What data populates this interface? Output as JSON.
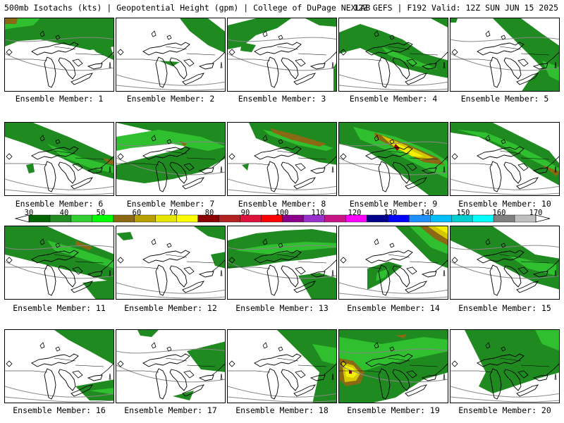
{
  "header": {
    "left": "500mb Isotachs (kts) | Geopotential Height (gpm) | College of DuPage NEXLAB",
    "right": "12Z GEFS | F192 Valid: 12Z SUN JUN 15 2025"
  },
  "colorbar": {
    "labels": [
      "30",
      "40",
      "50",
      "60",
      "70",
      "80",
      "90",
      "100",
      "110",
      "120",
      "130",
      "140",
      "150",
      "160",
      "170"
    ],
    "colors": [
      "#006400",
      "#228b22",
      "#32cd32",
      "#00ff00",
      "#8b6914",
      "#b8a000",
      "#e6e600",
      "#ffff00",
      "#8b0000",
      "#b22222",
      "#dc143c",
      "#ff0000",
      "#8b008b",
      "#9932cc",
      "#c71585",
      "#ff00ff",
      "#00008b",
      "#0000ff",
      "#1e90ff",
      "#00bfff",
      "#00ced1",
      "#00ffff",
      "#808080",
      "#c0c0c0"
    ]
  },
  "panels": [
    {
      "label": "Ensemble Member: 1"
    },
    {
      "label": "Ensemble Member: 2"
    },
    {
      "label": "Ensemble Member: 3"
    },
    {
      "label": "Ensemble Member: 4"
    },
    {
      "label": "Ensemble Member: 5"
    },
    {
      "label": "Ensemble Member: 6"
    },
    {
      "label": "Ensemble Member: 7"
    },
    {
      "label": "Ensemble Member: 8"
    },
    {
      "label": "Ensemble Member: 9"
    },
    {
      "label": "Ensemble Member: 10"
    },
    {
      "label": "Ensemble Member: 11"
    },
    {
      "label": "Ensemble Member: 12"
    },
    {
      "label": "Ensemble Member: 13"
    },
    {
      "label": "Ensemble Member: 14"
    },
    {
      "label": "Ensemble Member: 15"
    },
    {
      "label": "Ensemble Member: 16"
    },
    {
      "label": "Ensemble Member: 17"
    },
    {
      "label": "Ensemble Member: 18"
    },
    {
      "label": "Ensemble Member: 19"
    },
    {
      "label": "Ensemble Member: 20"
    }
  ]
}
